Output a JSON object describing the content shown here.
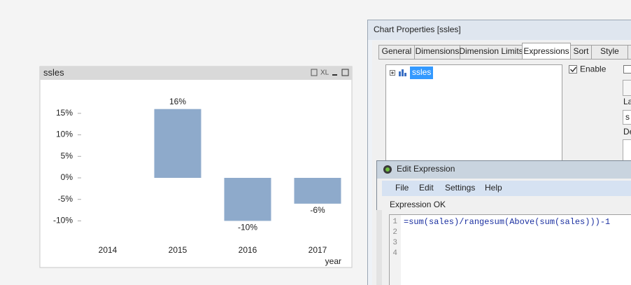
{
  "chart_data": {
    "type": "bar",
    "title": "ssles",
    "x_label": "year",
    "window_icon_text": "XL",
    "categories": [
      "2014",
      "2015",
      "2016",
      "2017"
    ],
    "values": [
      null,
      16,
      -10,
      -6
    ],
    "value_labels": [
      null,
      "16%",
      "-10%",
      "-6%"
    ],
    "color": "#8eaacb",
    "ylim": [
      -14,
      21
    ],
    "yticks": [
      {
        "value": -10,
        "label": "-10%"
      },
      {
        "value": -5,
        "label": "-5%"
      },
      {
        "value": 0,
        "label": "0%"
      },
      {
        "value": 5,
        "label": "5%"
      },
      {
        "value": 10,
        "label": "10%"
      },
      {
        "value": 15,
        "label": "15%"
      }
    ],
    "grid": false
  },
  "chart_properties": {
    "title": "Chart Properties [ssles]",
    "tabs": [
      "General",
      "Dimensions",
      "Dimension Limits",
      "Expressions",
      "Sort",
      "Style"
    ],
    "expression": "ssles",
    "enable": "Enable",
    "side_labels": [
      "La",
      "s",
      "De"
    ]
  },
  "edit_expression": {
    "title": "Edit Expression",
    "menu": [
      "File",
      "Edit",
      "Settings",
      "Help"
    ],
    "status": "Expression OK",
    "line_numbers": [
      "1",
      "2",
      "3",
      "4"
    ],
    "code": "=sum(sales)/rangesum(Above(sum(sales)))-1"
  }
}
